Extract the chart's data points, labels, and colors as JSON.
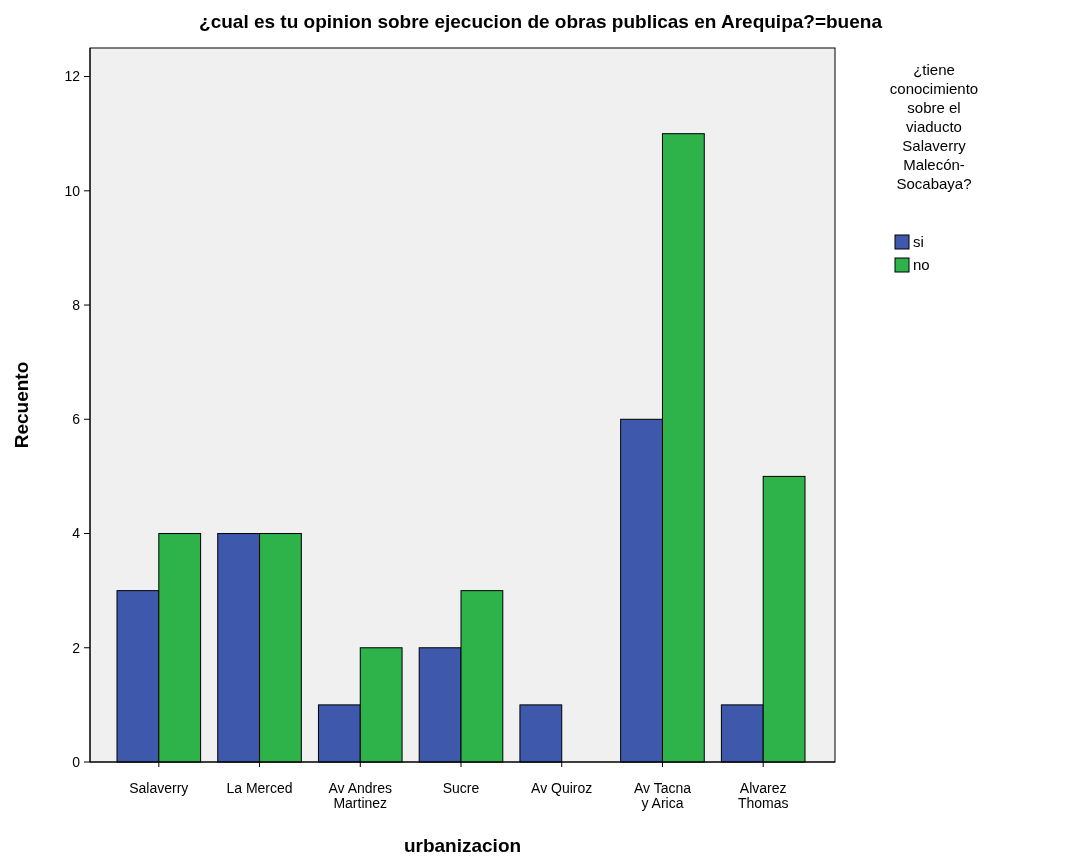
{
  "chart_data": {
    "type": "bar",
    "title": "¿cual es tu opinion sobre ejecucion de obras publicas en Arequipa?=buena",
    "xlabel": "urbanizacion",
    "ylabel": "Recuento",
    "legend_title": "¿tiene conocimiento sobre el viaducto Salaverry Malecón-Socabaya?",
    "categories": [
      "Salaverry",
      "La Merced",
      "Av Andres Martinez",
      "Sucre",
      "Av Quiroz",
      "Av Tacna y Arica",
      "Alvarez Thomas"
    ],
    "series": [
      {
        "name": "si",
        "color": "#3e58ac",
        "values": [
          3,
          4,
          1,
          2,
          1,
          6,
          1
        ]
      },
      {
        "name": "no",
        "color": "#2db34a",
        "values": [
          4,
          4,
          2,
          3,
          null,
          11,
          5
        ]
      }
    ],
    "ylim": [
      0,
      12.5
    ],
    "yticks": [
      0,
      2,
      4,
      6,
      8,
      10,
      12
    ],
    "grid": false,
    "legend": "right"
  }
}
